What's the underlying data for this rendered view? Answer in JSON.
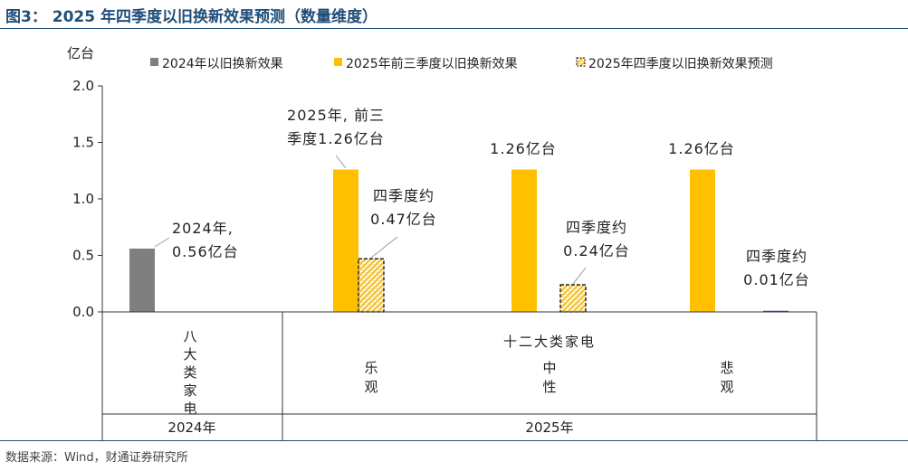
{
  "title": "图3： 2025 年四季度以旧换新效果预测（数量维度）",
  "source": "数据来源：Wind，财通证券研究所",
  "colors": {
    "series2024": "#7f7f7f",
    "seriesQ13": "#ffc000",
    "seriesQ4": "#ffc000",
    "rule": "#1f4e79"
  },
  "chart_data": {
    "type": "bar",
    "ylabel": "亿台",
    "ylim": [
      0,
      2.0
    ],
    "yticks": [
      "2.0",
      "1.5",
      "1.0",
      "0.5",
      "0.0"
    ],
    "legend": [
      {
        "name": "2024年以旧换新效果"
      },
      {
        "name": "2025年前三季度以旧换新效果"
      },
      {
        "name": "2025年四季度以旧换新效果预测"
      }
    ],
    "categories": [
      "八大类家电",
      "乐观",
      "中性",
      "悲观"
    ],
    "x_groups": [
      {
        "label": "十二大类家电",
        "year": "2025年"
      },
      {
        "label": "",
        "year": "2024年"
      }
    ],
    "bars": [
      {
        "category": "八大类家电",
        "series": 0,
        "value": 0.56
      },
      {
        "category": "乐观",
        "series": 1,
        "value": 1.26
      },
      {
        "category": "乐观",
        "series": 2,
        "value": 0.47
      },
      {
        "category": "中性",
        "series": 1,
        "value": 1.26
      },
      {
        "category": "中性",
        "series": 2,
        "value": 0.24
      },
      {
        "category": "悲观",
        "series": 1,
        "value": 1.26
      },
      {
        "category": "悲观",
        "series": 2,
        "value": 0.01
      }
    ],
    "annotations": [
      {
        "lines": [
          "2024年,",
          "0.56亿台"
        ]
      },
      {
        "lines": [
          "2025年, 前三",
          "季度1.26亿台"
        ]
      },
      {
        "lines": [
          "四季度约",
          "0.47亿台"
        ]
      },
      {
        "lines": [
          "1.26亿台"
        ]
      },
      {
        "lines": [
          "四季度约",
          "0.24亿台"
        ]
      },
      {
        "lines": [
          "1.26亿台"
        ]
      },
      {
        "lines": [
          "四季度约",
          "0.01亿台"
        ]
      }
    ]
  }
}
